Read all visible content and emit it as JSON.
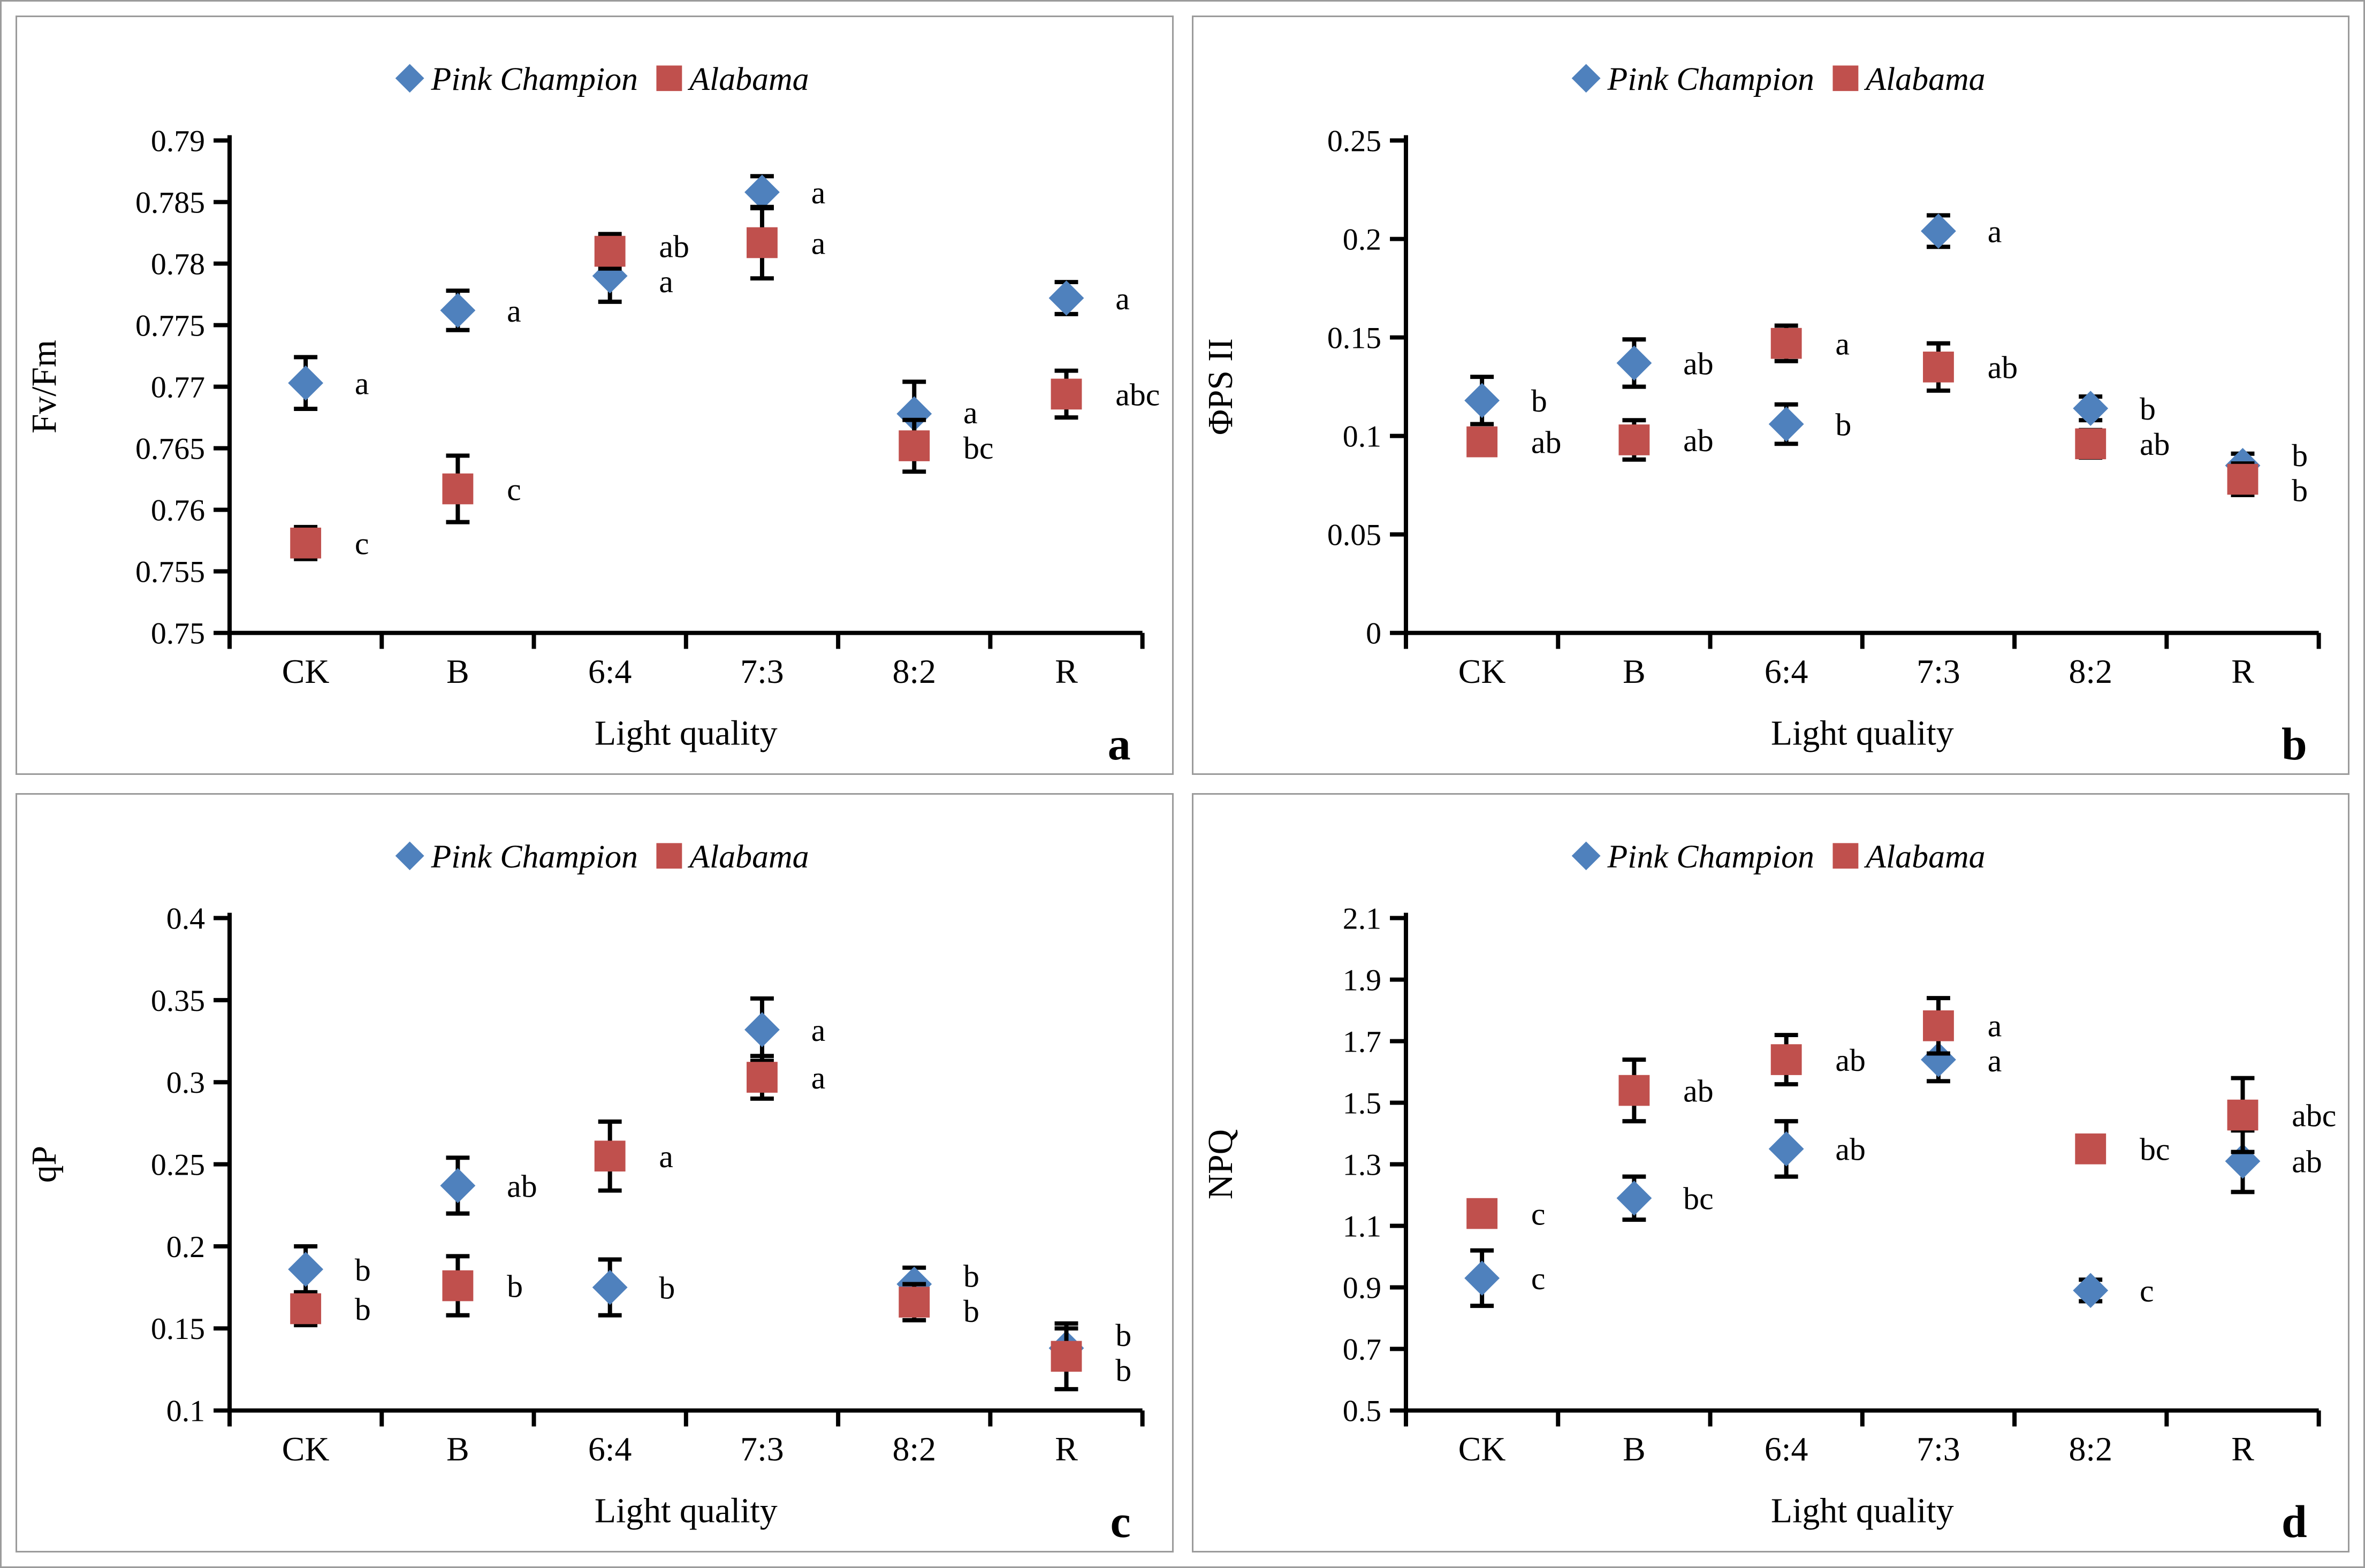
{
  "x_axis_title": "Light quality",
  "categories": [
    "CK",
    "B",
    "6:4",
    "7:3",
    "8:2",
    "R"
  ],
  "legend": {
    "series": [
      {
        "name": "Pink Champion",
        "marker": "diamond",
        "color": "#4f81bd"
      },
      {
        "name": "Alabama",
        "marker": "square",
        "color": "#c0504d"
      }
    ]
  },
  "axis_color": "#000000",
  "chart_data": [
    {
      "panel": "a",
      "type": "scatter",
      "title": "",
      "xlabel": "Light quality",
      "ylabel": "Fv/Fm",
      "ylim": [
        0.75,
        0.79
      ],
      "yticks": [
        "0.75",
        "0.755",
        "0.76",
        "0.765",
        "0.77",
        "0.775",
        "0.78",
        "0.785",
        "0.79"
      ],
      "grid": false,
      "legend_position": "top-center",
      "categories": [
        "CK",
        "B",
        "6:4",
        "7:3",
        "8:2",
        "R"
      ],
      "series": [
        {
          "name": "Pink Champion",
          "values": [
            0.7703,
            0.7762,
            0.779,
            0.7858,
            0.7678,
            0.7772
          ],
          "errors": [
            0.0021,
            0.0016,
            0.0021,
            0.0013,
            0.0026,
            0.0013
          ],
          "letters": [
            "a",
            "a",
            "a",
            "a",
            "a",
            "a"
          ]
        },
        {
          "name": "Alabama",
          "values": [
            0.7573,
            0.7617,
            0.781,
            0.7817,
            0.7652,
            0.7694
          ],
          "errors": [
            0.0013,
            0.0027,
            0.0014,
            0.0029,
            0.0021,
            0.0019
          ],
          "letters": [
            "c",
            "c",
            "ab",
            "a",
            "bc",
            "abc"
          ]
        }
      ],
      "panel_label": "a"
    },
    {
      "panel": "b",
      "type": "scatter",
      "title": "",
      "xlabel": "Light quality",
      "ylabel": "ΦPS II",
      "ylim": [
        0,
        0.25
      ],
      "yticks": [
        "0",
        "0.05",
        "0.1",
        "0.15",
        "0.2",
        "0.25"
      ],
      "grid": false,
      "legend_position": "top-center",
      "categories": [
        "CK",
        "B",
        "6:4",
        "7:3",
        "8:2",
        "R"
      ],
      "series": [
        {
          "name": "Pink Champion",
          "values": [
            0.118,
            0.137,
            0.106,
            0.204,
            0.114,
            0.085
          ],
          "errors": [
            0.012,
            0.012,
            0.01,
            0.008,
            0.006,
            0.006
          ],
          "letters": [
            "b",
            "ab",
            "b",
            "a",
            "b",
            "b"
          ]
        },
        {
          "name": "Alabama",
          "values": [
            0.097,
            0.098,
            0.147,
            0.135,
            0.096,
            0.078
          ],
          "errors": [
            0.004,
            0.01,
            0.009,
            0.012,
            0.007,
            0.008
          ],
          "letters": [
            "ab",
            "ab",
            "a",
            "ab",
            "ab",
            "b"
          ]
        }
      ],
      "panel_label": "b"
    },
    {
      "panel": "c",
      "type": "scatter",
      "title": "",
      "xlabel": "Light quality",
      "ylabel": "qP",
      "ylim": [
        0.1,
        0.4
      ],
      "yticks": [
        "0.1",
        "0.15",
        "0.2",
        "0.25",
        "0.3",
        "0.35",
        "0.4"
      ],
      "grid": false,
      "legend_position": "top-center",
      "categories": [
        "CK",
        "B",
        "6:4",
        "7:3",
        "8:2",
        "R"
      ],
      "series": [
        {
          "name": "Pink Champion",
          "values": [
            0.186,
            0.237,
            0.175,
            0.332,
            0.177,
            0.138
          ],
          "errors": [
            0.014,
            0.017,
            0.017,
            0.019,
            0.01,
            0.012
          ],
          "letters": [
            "b",
            "ab",
            "b",
            "a",
            "b",
            "b"
          ]
        },
        {
          "name": "Alabama",
          "values": [
            0.162,
            0.176,
            0.255,
            0.303,
            0.166,
            0.133
          ],
          "errors": [
            0.01,
            0.018,
            0.021,
            0.013,
            0.011,
            0.02
          ],
          "letters": [
            "b",
            "b",
            "a",
            "a",
            "b",
            "b"
          ]
        }
      ],
      "panel_label": "c"
    },
    {
      "panel": "d",
      "type": "scatter",
      "title": "",
      "xlabel": "Light quality",
      "ylabel": "NPQ",
      "ylim": [
        0.5,
        2.1
      ],
      "yticks": [
        "0.5",
        "0.7",
        "0.9",
        "1.1",
        "1.3",
        "1.5",
        "1.7",
        "1.9",
        "2.1"
      ],
      "grid": false,
      "legend_position": "top-center",
      "categories": [
        "CK",
        "B",
        "6:4",
        "7:3",
        "8:2",
        "R"
      ],
      "series": [
        {
          "name": "Pink Champion",
          "values": [
            0.93,
            1.19,
            1.35,
            1.64,
            0.89,
            1.31
          ],
          "errors": [
            0.09,
            0.07,
            0.09,
            0.07,
            0.035,
            0.1
          ],
          "letters": [
            "c",
            "bc",
            "ab",
            "a",
            "c",
            "ab"
          ]
        },
        {
          "name": "Alabama",
          "values": [
            1.14,
            1.54,
            1.64,
            1.75,
            1.35,
            1.46
          ],
          "errors": [
            0,
            0.1,
            0.08,
            0.09,
            0,
            0.12
          ],
          "letters": [
            "c",
            "ab",
            "ab",
            "a",
            "bc",
            "abc"
          ]
        }
      ],
      "panel_label": "d"
    }
  ]
}
